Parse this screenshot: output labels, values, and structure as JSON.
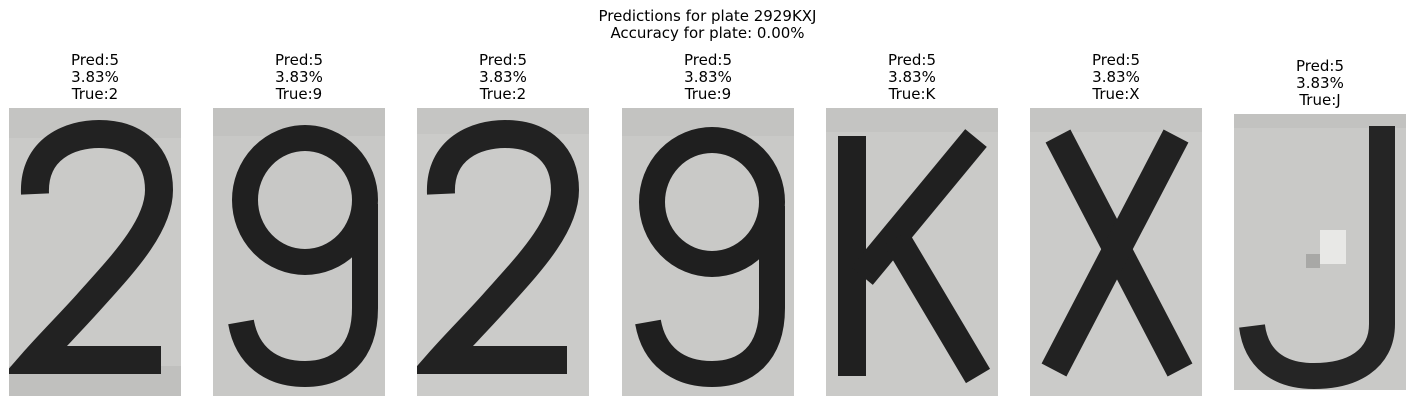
{
  "figure": {
    "title_line1": "Predictions for plate 2929KXJ",
    "title_line2": "Accuracy for plate: 0.00%"
  },
  "panels": [
    {
      "pred": "Pred:5",
      "conf": "3.83%",
      "true": "True:2",
      "glyph": "2"
    },
    {
      "pred": "Pred:5",
      "conf": "3.83%",
      "true": "True:9",
      "glyph": "9"
    },
    {
      "pred": "Pred:5",
      "conf": "3.83%",
      "true": "True:2",
      "glyph": "2"
    },
    {
      "pred": "Pred:5",
      "conf": "3.83%",
      "true": "True:9",
      "glyph": "9"
    },
    {
      "pred": "Pred:5",
      "conf": "3.83%",
      "true": "True:K",
      "glyph": "K"
    },
    {
      "pred": "Pred:5",
      "conf": "3.83%",
      "true": "True:X",
      "glyph": "X"
    },
    {
      "pred": "Pred:5",
      "conf": "3.83%",
      "true": "True:J",
      "glyph": "J"
    }
  ],
  "colors": {
    "plate_background": "#c9c9c7",
    "character_ink": "#1f1f1f"
  }
}
